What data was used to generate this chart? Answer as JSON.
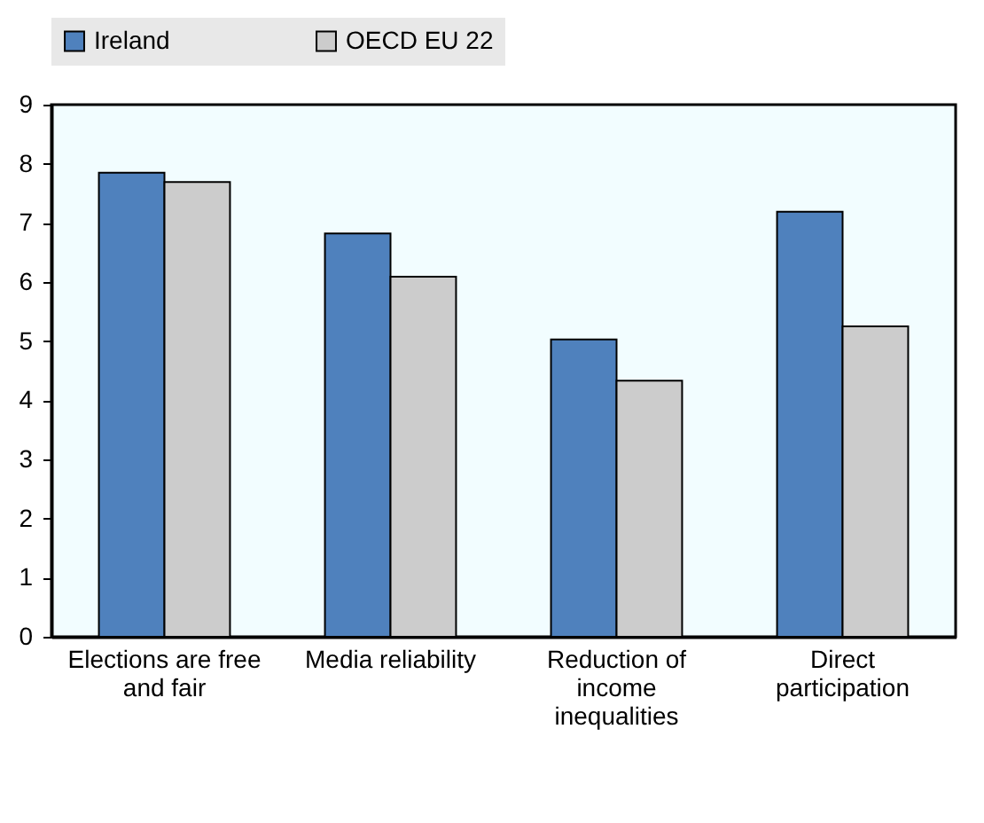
{
  "chart_data": {
    "type": "bar",
    "categories": [
      "Elections are free and fair",
      "Media reliability",
      "Reduction of income inequalities",
      "Direct participation"
    ],
    "series": [
      {
        "name": "Ireland",
        "color": "#4f81bd",
        "values": [
          7.85,
          6.82,
          5.03,
          7.19
        ]
      },
      {
        "name": "OECD EU 22",
        "color": "#cccccc",
        "values": [
          7.69,
          6.09,
          4.33,
          5.25
        ]
      }
    ],
    "ylim": [
      0,
      9
    ],
    "yticks": [
      0,
      1,
      2,
      3,
      4,
      5,
      6,
      7,
      8,
      9
    ],
    "grid": false,
    "legend": "top"
  }
}
